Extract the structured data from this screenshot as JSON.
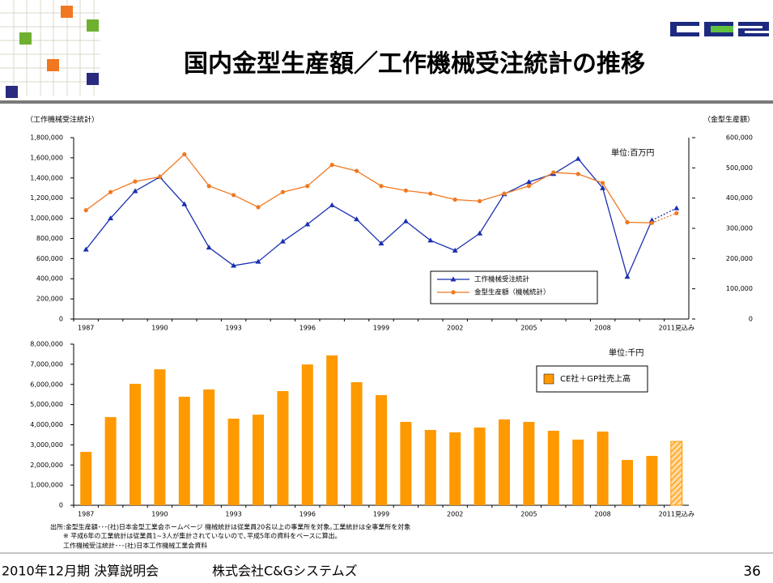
{
  "header": {
    "title": "国内金型生産額／工作機械受注統計の推移"
  },
  "footer": {
    "event": "2010年12月期 決算説明会",
    "company": "株式会社C&Gシステムズ",
    "page": "36"
  },
  "notes": [
    "出所:金型生産額･･･(社)日本金型工業会ホームページ 機械統計は従業員20名以上の事業所を対象｡工業統計は全事業所を対象",
    "※ 平成6年の工業統計は従業員1~3人が集計されていないので､平成5年の資料をベースに算出｡",
    "工作機械受注統計･･･(社)日本工作機械工業会資料"
  ],
  "chart_data": [
    {
      "type": "line",
      "y_label": "（工作機械受注統計）",
      "y2_label": "（金型生産額）",
      "unit": "単位:百万円",
      "categories": [
        "1987",
        null,
        null,
        "1990",
        null,
        null,
        "1993",
        null,
        null,
        "1996",
        null,
        null,
        "1999",
        null,
        null,
        "2002",
        null,
        null,
        "2005",
        null,
        null,
        "2008",
        null,
        null,
        "2011見込み"
      ],
      "series": [
        {
          "name": "工作機械受注統計",
          "color": "#1a2fb0",
          "marker": "triangle",
          "axis": "y",
          "values": [
            690000,
            1000000,
            1270000,
            1410000,
            1140000,
            710000,
            530000,
            570000,
            770000,
            940000,
            1130000,
            990000,
            750000,
            970000,
            780000,
            680000,
            850000,
            1240000,
            1360000,
            1440000,
            1590000,
            1300000,
            420000,
            980000,
            1100000
          ]
        },
        {
          "name": "金型生産額（機械統計）",
          "color": "#f07820",
          "marker": "circle",
          "axis": "y2",
          "values": [
            360000,
            420000,
            455000,
            470000,
            545000,
            440000,
            410000,
            370000,
            420000,
            440000,
            510000,
            490000,
            440000,
            425000,
            415000,
            395000,
            390000,
            415000,
            440000,
            485000,
            480000,
            450000,
            320000,
            318000,
            350000
          ]
        }
      ],
      "ylim": [
        0,
        1800000
      ],
      "yticks": [
        0,
        {
          "value": 200000,
          "label": "200,000"
        },
        {
          "value": 400000,
          "label": "400,000"
        },
        {
          "value": 600000,
          "label": "600,000"
        },
        {
          "value": 800000,
          "label": "800,000"
        },
        {
          "value": 1000000,
          "label": "1,000,000"
        },
        {
          "value": 1200000,
          "label": "1,200,000"
        },
        {
          "value": 1400000,
          "label": "1,400,000"
        },
        {
          "value": 1600000,
          "label": "1,600,000"
        },
        {
          "value": 1800000,
          "label": "1,800,000"
        }
      ],
      "y2lim": [
        0,
        600000
      ],
      "y2ticks": [
        0,
        {
          "value": 100000,
          "label": "100,000"
        },
        {
          "value": 200000,
          "label": "200,000"
        },
        {
          "value": 300000,
          "label": "300,000"
        },
        {
          "value": 400000,
          "label": "400,000"
        },
        {
          "value": 500000,
          "label": "500,000"
        },
        {
          "value": 600000,
          "label": "600,000"
        }
      ]
    },
    {
      "type": "bar",
      "unit": "単位:千円",
      "categories": [
        "1987",
        null,
        null,
        "1990",
        null,
        null,
        "1993",
        null,
        null,
        "1996",
        null,
        null,
        "1999",
        null,
        null,
        "2002",
        null,
        null,
        "2005",
        null,
        null,
        "2008",
        null,
        null,
        "2011見込み"
      ],
      "series": [
        {
          "name": "CE社＋GP社売上高",
          "color": "#ff9900",
          "values": [
            2650000,
            4380000,
            6030000,
            6750000,
            5390000,
            5750000,
            4300000,
            4500000,
            5670000,
            6990000,
            7440000,
            6110000,
            5470000,
            4140000,
            3740000,
            3620000,
            3860000,
            4260000,
            4140000,
            3700000,
            3260000,
            3660000,
            2250000,
            2450000,
            3170000
          ]
        }
      ],
      "ylim": [
        0,
        8000000
      ],
      "yticks": [
        0,
        {
          "value": 1000000,
          "label": "1,000,000"
        },
        {
          "value": 2000000,
          "label": "2,000,000"
        },
        {
          "value": 3000000,
          "label": "3,000,000"
        },
        {
          "value": 4000000,
          "label": "4,000,000"
        },
        {
          "value": 5000000,
          "label": "5,000,000"
        },
        {
          "value": 6000000,
          "label": "6,000,000"
        },
        {
          "value": 7000000,
          "label": "7,000,000"
        },
        {
          "value": 8000000,
          "label": "8,000,000"
        }
      ]
    }
  ]
}
